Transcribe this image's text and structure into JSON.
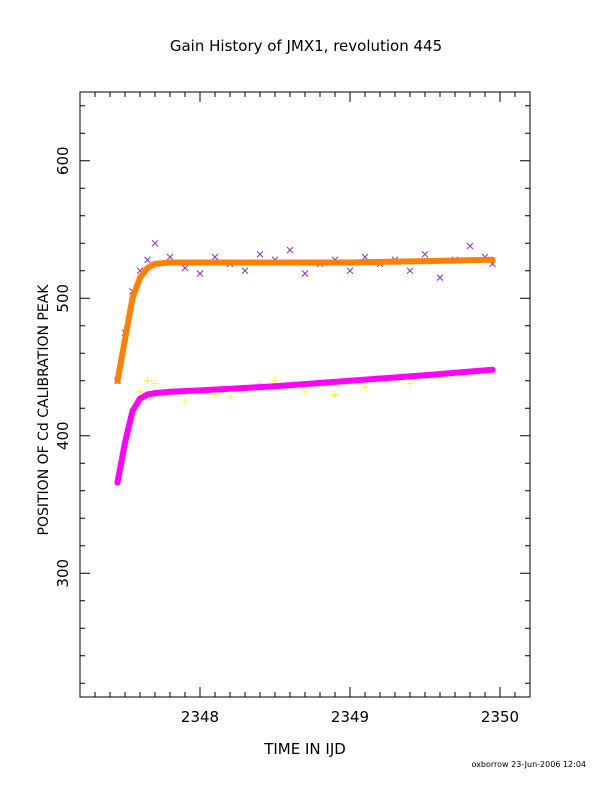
{
  "chart_data": {
    "type": "scatter",
    "title": "Gain History of JMX1, revolution 445",
    "xlabel": "TIME IN IJD",
    "ylabel": "POSITION OF Cd CALIBRATION PEAK",
    "footer": "oxborrow 23-Jun-2006 12:04",
    "xlim": [
      2347.2,
      2350.2
    ],
    "ylim": [
      210,
      650
    ],
    "x_ticks": [
      2348,
      2349,
      2350
    ],
    "y_ticks": [
      300,
      400,
      500,
      600
    ],
    "grid": false,
    "colors": {
      "series1_points": "#8a2be2",
      "series1_fit": "#ff7f00",
      "series2_points": "#ffff00",
      "series2_fit": "#ff00ff"
    },
    "series": [
      {
        "marker": "x",
        "color": "#8a2be2",
        "x": [
          2347.45,
          2347.5,
          2347.55,
          2347.6,
          2347.65,
          2347.7,
          2347.8,
          2347.9,
          2348.0,
          2348.1,
          2348.2,
          2348.3,
          2348.4,
          2348.5,
          2348.6,
          2348.7,
          2348.8,
          2348.9,
          2349.0,
          2349.1,
          2349.2,
          2349.3,
          2349.4,
          2349.5,
          2349.6,
          2349.7,
          2349.8,
          2349.9,
          2349.95
        ],
        "y": [
          440,
          475,
          505,
          520,
          528,
          540,
          530,
          522,
          518,
          530,
          525,
          520,
          532,
          528,
          535,
          518,
          525,
          528,
          520,
          530,
          525,
          528,
          520,
          532,
          515,
          528,
          538,
          530,
          525
        ]
      },
      {
        "marker": "fit",
        "color": "#ff7f00",
        "x": [
          2347.45,
          2347.5,
          2347.55,
          2347.6,
          2347.65,
          2347.7,
          2347.8,
          2348.0,
          2348.5,
          2349.0,
          2349.5,
          2349.95
        ],
        "y": [
          440,
          470,
          500,
          515,
          522,
          525,
          526,
          526,
          526,
          526,
          527,
          528
        ]
      },
      {
        "marker": "+",
        "color": "#ffff00",
        "x": [
          2347.45,
          2347.5,
          2347.55,
          2347.6,
          2347.65,
          2347.7,
          2347.8,
          2347.9,
          2348.0,
          2348.1,
          2348.2,
          2348.3,
          2348.4,
          2348.5,
          2348.6,
          2348.7,
          2348.8,
          2348.9,
          2349.0,
          2349.1,
          2349.2,
          2349.3,
          2349.4,
          2349.5,
          2349.6,
          2349.7,
          2349.8,
          2349.9,
          2349.95
        ],
        "y": [
          370,
          400,
          420,
          432,
          440,
          438,
          430,
          425,
          432,
          430,
          428,
          435,
          438,
          440,
          436,
          432,
          438,
          430,
          440,
          436,
          442,
          440,
          438,
          445,
          442,
          446,
          444,
          448,
          447
        ]
      },
      {
        "marker": "fit",
        "color": "#ff00ff",
        "x": [
          2347.45,
          2347.5,
          2347.55,
          2347.6,
          2347.65,
          2347.7,
          2347.8,
          2348.0,
          2348.5,
          2349.0,
          2349.5,
          2349.95
        ],
        "y": [
          366,
          395,
          418,
          427,
          430,
          431,
          432,
          433,
          436,
          440,
          444,
          448
        ]
      }
    ]
  }
}
